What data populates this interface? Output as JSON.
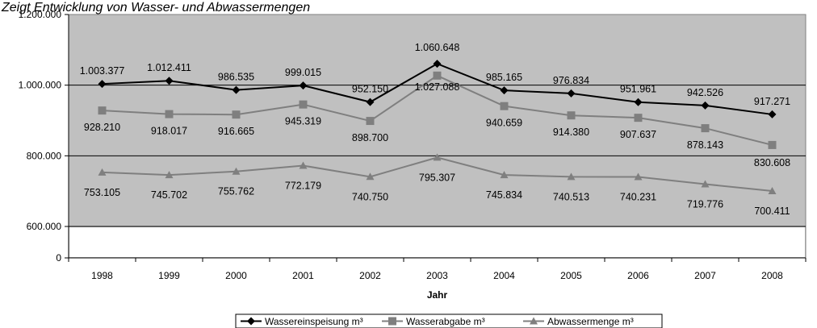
{
  "caption": "Zeigt   Entwicklung von Wasser- und Abwassermengen",
  "chart_data": {
    "type": "line",
    "title": "",
    "xlabel": "Jahr",
    "ylabel": "",
    "x": [
      "1998",
      "1999",
      "2000",
      "2001",
      "2002",
      "2003",
      "2004",
      "2005",
      "2006",
      "2007",
      "2008"
    ],
    "ylim": [
      0,
      1200000
    ],
    "yticks": [
      0,
      600000,
      800000,
      1000000,
      1200000
    ],
    "ytick_labels": [
      "0",
      "600.000",
      "800.000",
      "1.000.000",
      "1.200.000"
    ],
    "axis_break": true,
    "grid": true,
    "legend_position": "bottom",
    "series": [
      {
        "name": "Wassereinspeisung m³",
        "marker": "diamond",
        "color": "#000000",
        "values": [
          1003377,
          1012411,
          986535,
          999015,
          952150,
          1060648,
          985165,
          976834,
          951961,
          942526,
          917271
        ],
        "labels": [
          "1.003.377",
          "1.012.411",
          "986.535",
          "999.015",
          "952.150",
          "1.060.648",
          "985.165",
          "976.834",
          "951.961",
          "942.526",
          "917.271"
        ]
      },
      {
        "name": "Wasserabgabe m³",
        "marker": "square",
        "color": "#7f7f7f",
        "values": [
          928210,
          918017,
          916665,
          945319,
          898700,
          1027088,
          940659,
          914380,
          907637,
          878143,
          830608
        ],
        "labels": [
          "928.210",
          "918.017",
          "916.665",
          "945.319",
          "898.700",
          "1.027.088",
          "940.659",
          "914.380",
          "907.637",
          "878.143",
          "830.608"
        ]
      },
      {
        "name": "Abwassermenge m³",
        "marker": "triangle",
        "color": "#7f7f7f",
        "values": [
          753105,
          745702,
          755762,
          772179,
          740750,
          795307,
          745834,
          740513,
          740231,
          719776,
          700411
        ],
        "labels": [
          "753.105",
          "745.702",
          "755.762",
          "772.179",
          "740.750",
          "795.307",
          "745.834",
          "740.513",
          "740.231",
          "719.776",
          "700.411"
        ]
      }
    ]
  }
}
